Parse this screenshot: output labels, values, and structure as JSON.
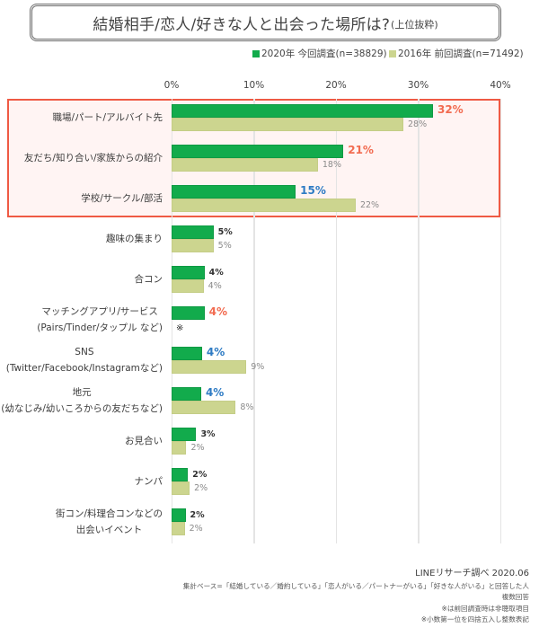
{
  "title": {
    "main": "結婚相手/恋人/好きな人と出会った場所は?",
    "sub": "(上位抜粋)"
  },
  "legend": [
    {
      "label": "2020年 今回調査(n=38829)",
      "color": "#12ab4c"
    },
    {
      "label": "2016年 前回調査(n=71492)",
      "color": "#ccd58f"
    }
  ],
  "axis": {
    "ticks": [
      "0%",
      "10%",
      "20%",
      "30%",
      "40%"
    ]
  },
  "colors": {
    "series_2020": "#12ab4c",
    "series_2016": "#ccd58f",
    "highlight_border": "#ef5a44",
    "highlight_bg": "#fff4f3",
    "increase_label": "#f26b50",
    "decrease_label": "#2e7bc4",
    "neutral_label": "#2f2f2f"
  },
  "rows": [
    {
      "lines": [
        "職場/パート/アルバイト先"
      ]
    },
    {
      "lines": [
        "友だち/知り合い/家族からの紹介"
      ]
    },
    {
      "lines": [
        "学校/サークル/部活"
      ]
    },
    {
      "lines": [
        "趣味の集まり"
      ]
    },
    {
      "lines": [
        "合コン"
      ]
    },
    {
      "lines": [
        "マッチングアプリ/サービス",
        "(Pairs/Tinder/タップル など)"
      ]
    },
    {
      "lines": [
        "SNS",
        "(Twitter/Facebook/Instagramなど)"
      ]
    },
    {
      "lines": [
        "地元",
        "(幼なじみ/幼いころからの友だちなど)"
      ]
    },
    {
      "lines": [
        "お見合い"
      ]
    },
    {
      "lines": [
        "ナンパ"
      ]
    },
    {
      "lines": [
        "街コン/料理合コンなどの",
        "出会いイベント"
      ]
    }
  ],
  "footer": {
    "source": "LINEリサーチ調べ 2020.06",
    "base": "集計ベース=「結婚している／婚約している」「恋人がいる／パートナーがいる」「好きな人がいる」と回答した人",
    "multi": "複数回答",
    "note1": "※は前回調査時は非聴取項目",
    "note2": "※小数第一位を四捨五入し整数表記"
  },
  "chart_data": {
    "type": "bar",
    "orientation": "horizontal",
    "title": "結婚相手/恋人/好きな人と出会った場所は?(上位抜粋)",
    "xlabel": "",
    "ylabel": "",
    "xlim": [
      0,
      40
    ],
    "xticks": [
      "0%",
      "10%",
      "20%",
      "30%",
      "40%"
    ],
    "grid": true,
    "legend_position": "top-right",
    "categories": [
      "職場/パート/アルバイト先",
      "友だち/知り合い/家族からの紹介",
      "学校/サークル/部活",
      "趣味の集まり",
      "合コン",
      "マッチングアプリ/サービス (Pairs/Tinder/タップル など)",
      "SNS (Twitter/Facebook/Instagramなど)",
      "地元 (幼なじみ/幼いころからの友だちなど)",
      "お見合い",
      "ナンパ",
      "街コン/料理合コンなどの出会いイベント"
    ],
    "series": [
      {
        "name": "2020年 今回調査(n=38829)",
        "color": "#12ab4c",
        "values": [
          32,
          21,
          15,
          5,
          4,
          4,
          4,
          4,
          3,
          2,
          2
        ],
        "labels": [
          "32%",
          "21%",
          "15%",
          "5%",
          "4%",
          "4%",
          "4%",
          "4%",
          "3%",
          "2%",
          "2%"
        ],
        "label_colors": [
          "#f26b50",
          "#f26b50",
          "#2e7bc4",
          "#2f2f2f",
          "#2f2f2f",
          "#f26b50",
          "#2e7bc4",
          "#2e7bc4",
          "#2f2f2f",
          "#2f2f2f",
          "#2f2f2f"
        ],
        "bar_values": [
          31.8,
          20.9,
          15.1,
          5.1,
          4.0,
          4.0,
          3.7,
          3.6,
          3.0,
          2.0,
          1.7
        ]
      },
      {
        "name": "2016年 前回調査(n=71492)",
        "color": "#ccd58f",
        "values": [
          28,
          18,
          22,
          5,
          4,
          null,
          9,
          8,
          2,
          2,
          2
        ],
        "labels": [
          "28%",
          "18%",
          "22%",
          "5%",
          "4%",
          "※",
          "9%",
          "8%",
          "2%",
          "2%",
          "2%"
        ],
        "bar_values": [
          28.2,
          17.8,
          22.4,
          5.1,
          3.9,
          0,
          9.1,
          7.8,
          1.8,
          2.2,
          1.6
        ]
      }
    ],
    "highlight": {
      "rows": [
        0,
        1,
        2
      ],
      "color": "#ef5a44"
    },
    "annotations": [
      "※は前回調査時は非聴取項目",
      "※小数第一位を四捨五入し整数表記",
      "複数回答",
      "LINEリサーチ調べ 2020.06"
    ]
  }
}
